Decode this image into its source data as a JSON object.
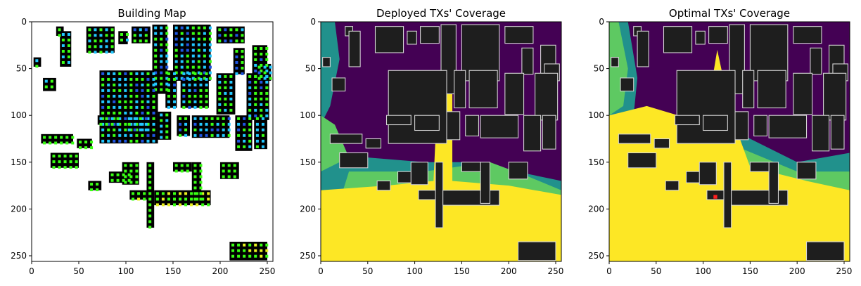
{
  "panels": [
    {
      "id": "building-map",
      "title": "Building Map",
      "x_ticks": [
        "0",
        "50",
        "100",
        "150",
        "200",
        "250"
      ],
      "y_ticks": [
        "0",
        "50",
        "100",
        "150",
        "200",
        "250"
      ]
    },
    {
      "id": "deployed-coverage",
      "title": "Deployed TXs' Coverage",
      "x_ticks": [
        "0",
        "50",
        "100",
        "150",
        "200",
        "250"
      ],
      "y_ticks": [
        "0",
        "50",
        "100",
        "150",
        "200",
        "250"
      ]
    },
    {
      "id": "optimal-coverage",
      "title": "Optimal TXs' Coverage",
      "x_ticks": [
        "0",
        "50",
        "100",
        "150",
        "200",
        "250"
      ],
      "y_ticks": [
        "0",
        "50",
        "100",
        "150",
        "200",
        "250"
      ]
    }
  ],
  "colors": {
    "building": "#000000",
    "green_marker": "#39ff14",
    "cyan_marker": "#22c7ff",
    "blue_marker": "#1f55e0",
    "yellow_marker": "#e8f020",
    "viridis_purple": "#440154",
    "viridis_teal": "#21918c",
    "viridis_green": "#5ec962",
    "viridis_yellow": "#fde725",
    "building_gray": "#1e1e1e",
    "tx_red": "#ff2020"
  }
}
